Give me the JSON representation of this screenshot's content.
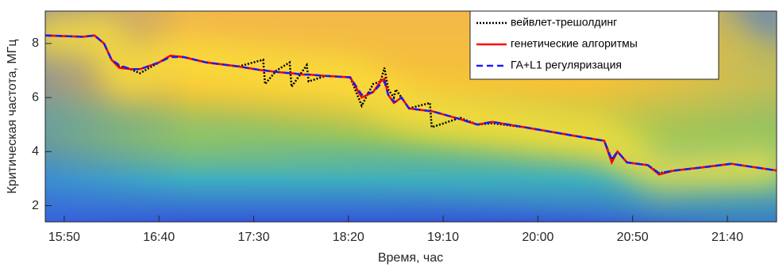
{
  "chart_data": {
    "type": "line",
    "xlabel": "Время, час",
    "ylabel": "Критическая частота, МГц",
    "xlim": [
      940,
      1326
    ],
    "ylim": [
      1.4,
      9.2
    ],
    "xticks": [
      {
        "value": 950,
        "label": "15:50"
      },
      {
        "value": 1000,
        "label": "16:40"
      },
      {
        "value": 1050,
        "label": "17:30"
      },
      {
        "value": 1100,
        "label": "18:20"
      },
      {
        "value": 1150,
        "label": "19:10"
      },
      {
        "value": 1200,
        "label": "20:00"
      },
      {
        "value": 1250,
        "label": "20:50"
      },
      {
        "value": 1300,
        "label": "21:40"
      }
    ],
    "yticks": [
      2,
      4,
      6,
      8
    ],
    "legend": "upper right",
    "x": [
      940,
      960,
      966,
      971,
      975,
      979,
      985,
      990,
      1000,
      1006,
      1013,
      1025,
      1042,
      1055,
      1056,
      1062,
      1069,
      1070,
      1076,
      1078,
      1079,
      1088,
      1101,
      1107,
      1113,
      1117,
      1119,
      1121,
      1124,
      1125,
      1128,
      1132,
      1143,
      1144,
      1159,
      1168,
      1176,
      1193,
      1218,
      1235,
      1239,
      1242,
      1247,
      1258,
      1264,
      1272,
      1285,
      1302,
      1326
    ],
    "series": [
      {
        "name": "вейвлет-трешолдинг",
        "color": "#000000",
        "style": "dotted",
        "values": [
          8.3,
          8.25,
          8.3,
          8.0,
          7.4,
          7.15,
          7.05,
          6.9,
          7.3,
          7.55,
          7.5,
          7.3,
          7.15,
          7.4,
          6.5,
          7.0,
          7.3,
          6.4,
          7.0,
          7.2,
          6.6,
          6.8,
          6.75,
          5.7,
          6.5,
          6.6,
          7.1,
          6.3,
          6.0,
          6.3,
          6.0,
          5.6,
          5.8,
          4.9,
          5.25,
          5.0,
          5.05,
          4.9,
          4.6,
          4.4,
          3.7,
          4.0,
          3.6,
          3.5,
          3.2,
          3.3,
          3.4,
          3.55,
          3.3
        ]
      },
      {
        "name": "генетические алгоритмы",
        "color": "#ff0000",
        "style": "solid",
        "values": [
          8.3,
          8.25,
          8.3,
          8.0,
          7.4,
          7.1,
          7.05,
          7.05,
          7.3,
          7.55,
          7.5,
          7.3,
          7.15,
          7.0,
          7.0,
          6.95,
          6.9,
          6.9,
          6.85,
          6.85,
          6.85,
          6.8,
          6.75,
          6.0,
          6.2,
          6.6,
          6.7,
          6.1,
          5.8,
          5.85,
          6.0,
          5.6,
          5.5,
          5.5,
          5.2,
          5.0,
          5.1,
          4.9,
          4.6,
          4.4,
          3.6,
          4.0,
          3.6,
          3.5,
          3.15,
          3.3,
          3.4,
          3.55,
          3.3
        ]
      },
      {
        "name": "ГА+L1 регуляризация",
        "color": "#1a1aff",
        "style": "dashed",
        "values": [
          8.3,
          8.25,
          8.3,
          8.0,
          7.4,
          7.2,
          7.05,
          7.05,
          7.3,
          7.5,
          7.5,
          7.3,
          7.15,
          7.0,
          7.0,
          6.95,
          6.9,
          6.9,
          6.85,
          6.85,
          6.85,
          6.8,
          6.75,
          6.1,
          6.2,
          6.5,
          6.6,
          6.1,
          5.85,
          5.85,
          6.0,
          5.6,
          5.5,
          5.5,
          5.2,
          5.0,
          5.1,
          4.9,
          4.6,
          4.4,
          3.7,
          4.0,
          3.6,
          3.5,
          3.2,
          3.3,
          3.4,
          3.55,
          3.3
        ]
      }
    ]
  }
}
